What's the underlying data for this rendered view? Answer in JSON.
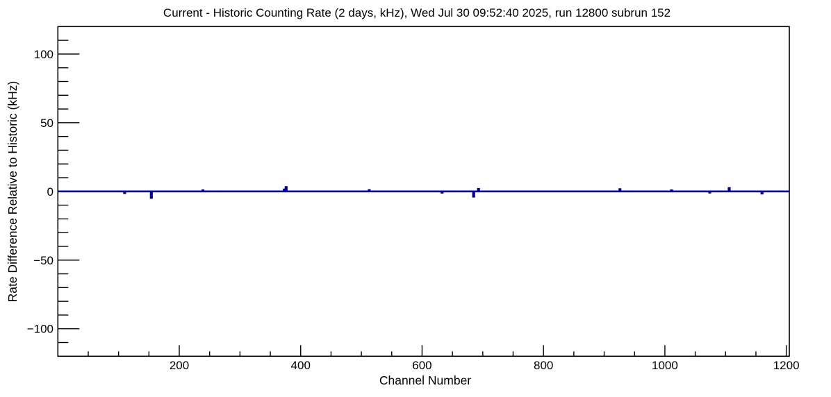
{
  "window": {
    "background_color": "#ffffff"
  },
  "chart_data": {
    "type": "line",
    "style": "step-histogram",
    "title": "Current - Historic Counting Rate (2 days, kHz), Wed Jul 30 09:52:40 2025, run 12800 subrun 152",
    "xlabel": "Channel Number",
    "ylabel": "Rate Difference Relative to Historic (kHz)",
    "xlim": [
      0,
      1205
    ],
    "ylim": [
      -120,
      120
    ],
    "x_major_ticks": [
      200,
      400,
      600,
      800,
      1000,
      1200
    ],
    "x_minor_step": 50,
    "y_major_ticks": [
      -100,
      -50,
      0,
      50,
      100
    ],
    "y_minor_step": 10,
    "x_tick_labels": [
      "200",
      "400",
      "600",
      "800",
      "1000",
      "1200"
    ],
    "y_tick_labels": [
      "−100",
      "−50",
      "0",
      "50",
      "100"
    ],
    "grid": false,
    "legend": false,
    "line_color": "#000099",
    "frame_color": "#000000",
    "baseline_value": 0,
    "spike_half_width_channels": 0.9,
    "spikes": [
      {
        "channel": 110,
        "value": -1.2
      },
      {
        "channel": 154,
        "value": -4.7
      },
      {
        "channel": 239,
        "value": 0.8
      },
      {
        "channel": 373,
        "value": 1.4
      },
      {
        "channel": 376,
        "value": 3.2
      },
      {
        "channel": 513,
        "value": 1.0
      },
      {
        "channel": 633,
        "value": -0.9
      },
      {
        "channel": 685,
        "value": -3.8
      },
      {
        "channel": 693,
        "value": 1.8
      },
      {
        "channel": 926,
        "value": 1.6
      },
      {
        "channel": 1011,
        "value": 0.8
      },
      {
        "channel": 1074,
        "value": -0.8
      },
      {
        "channel": 1106,
        "value": 2.5
      },
      {
        "channel": 1160,
        "value": -1.5
      }
    ]
  }
}
